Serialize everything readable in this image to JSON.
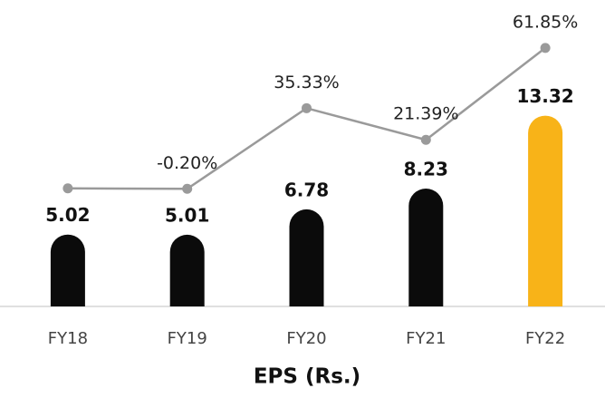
{
  "chart_data": {
    "type": "bar",
    "title": "EPS (Rs.)",
    "categories": [
      "FY18",
      "FY19",
      "FY20",
      "FY21",
      "FY22"
    ],
    "series": [
      {
        "name": "EPS",
        "type": "bar",
        "colors": [
          "#0b0b0b",
          "#0b0b0b",
          "#0b0b0b",
          "#0b0b0b",
          "#f8b318"
        ],
        "values": [
          5.02,
          5.01,
          6.78,
          8.23,
          13.32
        ]
      },
      {
        "name": "Growth",
        "type": "line",
        "axis": "y2",
        "color": "#9a9a9a",
        "values": [
          0,
          -0.2,
          35.33,
          21.39,
          61.85
        ],
        "value_labels": [
          null,
          "-0.20%",
          "35.33%",
          "21.39%",
          "61.85%"
        ]
      }
    ],
    "ylim": [
      0,
      19.5
    ],
    "y2lim": [
      -52,
      71
    ],
    "grid": false
  }
}
